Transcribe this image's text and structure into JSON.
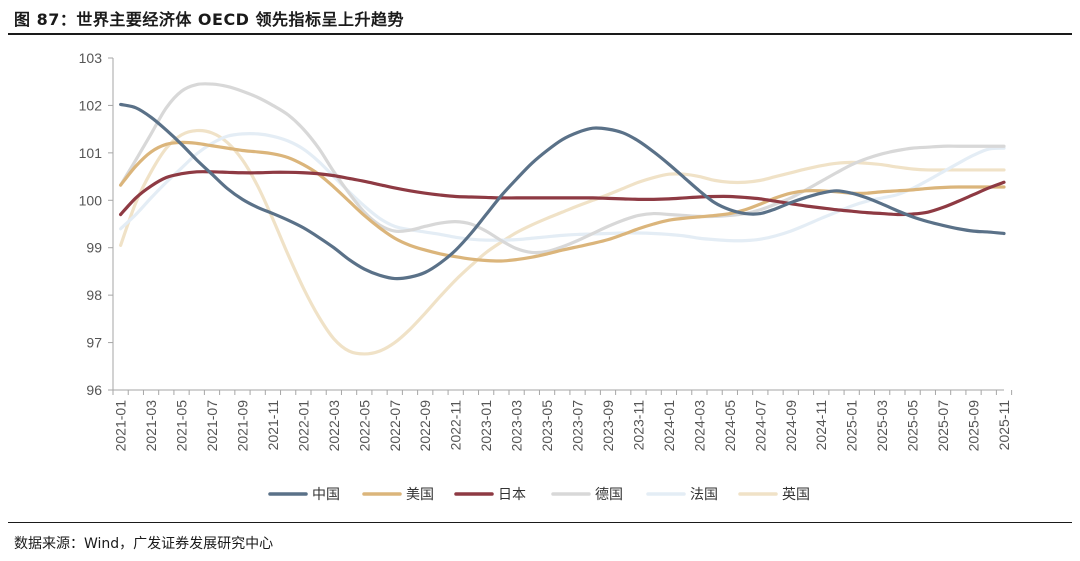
{
  "title": "图 87：世界主要经济体 OECD 领先指标呈上升趋势",
  "source": "数据来源：Wind，广发证券发展研究中心",
  "chart_data": {
    "type": "line",
    "title": "图 87：世界主要经济体 OECD 领先指标呈上升趋势",
    "xlabel": "",
    "ylabel": "",
    "ylim": [
      96,
      103
    ],
    "yticks": [
      "96",
      "97",
      "98",
      "99",
      "100",
      "101",
      "102",
      "103"
    ],
    "xticks": [
      "2021-01",
      "2021-03",
      "2021-05",
      "2021-07",
      "2021-09",
      "2021-11",
      "2022-01",
      "2022-03",
      "2022-05",
      "2022-07",
      "2022-09",
      "2022-11",
      "2023-01",
      "2023-03",
      "2023-05",
      "2023-07",
      "2023-09",
      "2023-11",
      "2024-01",
      "2024-03",
      "2024-05",
      "2024-07",
      "2024-09",
      "2024-11",
      "2025-01",
      "2025-03",
      "2025-05",
      "2025-07",
      "2025-09",
      "2025-11"
    ],
    "grid": false,
    "legend_position": "bottom",
    "x": [
      "2021-01",
      "2021-02",
      "2021-03",
      "2021-04",
      "2021-05",
      "2021-06",
      "2021-07",
      "2021-08",
      "2021-09",
      "2021-10",
      "2021-11",
      "2021-12",
      "2022-01",
      "2022-02",
      "2022-03",
      "2022-04",
      "2022-05",
      "2022-06",
      "2022-07",
      "2022-08",
      "2022-09",
      "2022-10",
      "2022-11",
      "2022-12",
      "2023-01",
      "2023-02",
      "2023-03",
      "2023-04",
      "2023-05",
      "2023-06",
      "2023-07",
      "2023-08",
      "2023-09",
      "2023-10",
      "2023-11",
      "2023-12",
      "2024-01",
      "2024-02",
      "2024-03",
      "2024-04",
      "2024-05",
      "2024-06",
      "2024-07",
      "2024-08",
      "2024-09",
      "2024-10",
      "2024-11",
      "2024-12",
      "2025-01",
      "2025-02",
      "2025-03",
      "2025-04",
      "2025-05",
      "2025-06",
      "2025-07",
      "2025-08",
      "2025-09",
      "2025-10",
      "2025-11"
    ],
    "series": [
      {
        "name": "中国",
        "color": "#5a7188",
        "values": [
          102.02,
          101.95,
          101.75,
          101.48,
          101.18,
          100.85,
          100.55,
          100.25,
          100.02,
          99.85,
          99.72,
          99.58,
          99.42,
          99.22,
          99.0,
          98.75,
          98.55,
          98.42,
          98.35,
          98.38,
          98.48,
          98.68,
          98.95,
          99.3,
          99.7,
          100.1,
          100.45,
          100.78,
          101.05,
          101.28,
          101.43,
          101.52,
          101.5,
          101.42,
          101.25,
          101.02,
          100.76,
          100.48,
          100.2,
          99.95,
          99.8,
          99.72,
          99.72,
          99.82,
          99.95,
          100.06,
          100.15,
          100.2,
          100.15,
          100.05,
          99.92,
          99.78,
          99.65,
          99.55,
          99.47,
          99.4,
          99.35,
          99.33,
          99.3
        ]
      },
      {
        "name": "美国",
        "color": "#dbb57b",
        "values": [
          100.32,
          100.72,
          101.02,
          101.18,
          101.22,
          101.2,
          101.15,
          101.1,
          101.05,
          101.02,
          100.98,
          100.9,
          100.75,
          100.55,
          100.28,
          99.98,
          99.68,
          99.42,
          99.2,
          99.05,
          98.95,
          98.87,
          98.81,
          98.76,
          98.73,
          98.72,
          98.75,
          98.8,
          98.87,
          98.95,
          99.02,
          99.09,
          99.17,
          99.28,
          99.4,
          99.5,
          99.58,
          99.62,
          99.65,
          99.68,
          99.72,
          99.8,
          99.92,
          100.05,
          100.15,
          100.2,
          100.2,
          100.18,
          100.15,
          100.15,
          100.18,
          100.2,
          100.22,
          100.25,
          100.27,
          100.28,
          100.28,
          100.28,
          100.28
        ]
      },
      {
        "name": "日本",
        "color": "#8e3a43",
        "values": [
          99.7,
          100.05,
          100.3,
          100.48,
          100.56,
          100.6,
          100.6,
          100.59,
          100.58,
          100.58,
          100.59,
          100.59,
          100.58,
          100.56,
          100.52,
          100.46,
          100.4,
          100.33,
          100.26,
          100.2,
          100.15,
          100.11,
          100.08,
          100.07,
          100.06,
          100.05,
          100.05,
          100.05,
          100.05,
          100.05,
          100.05,
          100.05,
          100.04,
          100.03,
          100.02,
          100.02,
          100.03,
          100.05,
          100.07,
          100.08,
          100.08,
          100.06,
          100.03,
          99.98,
          99.93,
          99.88,
          99.84,
          99.8,
          99.77,
          99.74,
          99.72,
          99.7,
          99.71,
          99.75,
          99.85,
          99.98,
          100.12,
          100.26,
          100.38
        ]
      },
      {
        "name": "德国",
        "color": "#d8d8d8",
        "values": [
          100.32,
          100.85,
          101.4,
          101.95,
          102.3,
          102.44,
          102.45,
          102.4,
          102.3,
          102.17,
          102.0,
          101.8,
          101.5,
          101.1,
          100.6,
          100.15,
          99.75,
          99.48,
          99.35,
          99.37,
          99.45,
          99.52,
          99.55,
          99.5,
          99.35,
          99.15,
          98.98,
          98.9,
          98.92,
          99.02,
          99.15,
          99.3,
          99.45,
          99.58,
          99.68,
          99.72,
          99.7,
          99.68,
          99.66,
          99.66,
          99.68,
          99.72,
          99.8,
          99.92,
          100.05,
          100.22,
          100.4,
          100.58,
          100.75,
          100.88,
          100.98,
          101.05,
          101.1,
          101.12,
          101.14,
          101.14,
          101.14,
          101.14,
          101.14
        ]
      },
      {
        "name": "法国",
        "color": "#e4edf5",
        "values": [
          99.4,
          99.7,
          100.05,
          100.38,
          100.68,
          100.98,
          101.2,
          101.35,
          101.4,
          101.4,
          101.35,
          101.25,
          101.08,
          100.82,
          100.5,
          100.18,
          99.88,
          99.62,
          99.45,
          99.38,
          99.33,
          99.28,
          99.22,
          99.18,
          99.16,
          99.16,
          99.17,
          99.2,
          99.23,
          99.26,
          99.28,
          99.29,
          99.3,
          99.31,
          99.31,
          99.3,
          99.28,
          99.25,
          99.2,
          99.17,
          99.15,
          99.15,
          99.18,
          99.25,
          99.35,
          99.48,
          99.62,
          99.75,
          99.88,
          99.98,
          100.05,
          100.12,
          100.25,
          100.42,
          100.6,
          100.78,
          100.95,
          101.08,
          101.1
        ]
      },
      {
        "name": "英国",
        "color": "#f0e2c7",
        "values": [
          99.05,
          99.95,
          100.6,
          101.1,
          101.38,
          101.47,
          101.42,
          101.22,
          100.85,
          100.3,
          99.6,
          98.85,
          98.15,
          97.55,
          97.08,
          96.82,
          96.76,
          96.82,
          97.0,
          97.28,
          97.62,
          97.98,
          98.32,
          98.62,
          98.9,
          99.12,
          99.32,
          99.48,
          99.62,
          99.75,
          99.88,
          100.0,
          100.12,
          100.25,
          100.38,
          100.48,
          100.55,
          100.55,
          100.5,
          100.42,
          100.38,
          100.38,
          100.42,
          100.5,
          100.58,
          100.66,
          100.73,
          100.78,
          100.8,
          100.78,
          100.75,
          100.7,
          100.66,
          100.64,
          100.64,
          100.64,
          100.64,
          100.64,
          100.64
        ]
      }
    ]
  }
}
